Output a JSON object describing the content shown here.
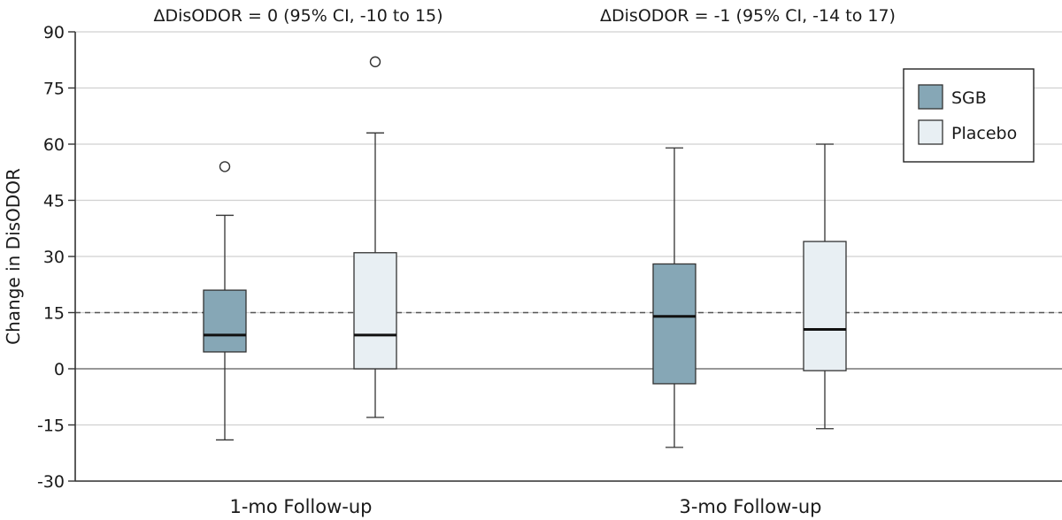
{
  "chart_data": {
    "type": "box",
    "ylabel": "Change in DisODOR",
    "ylim": [
      -30,
      90
    ],
    "yticks": [
      -30,
      -15,
      0,
      15,
      30,
      45,
      60,
      75,
      90
    ],
    "yticks_labels": [
      "-30",
      "-15",
      "0",
      "15",
      "30",
      "45",
      "60",
      "75",
      "90"
    ],
    "grid": true,
    "reference_lines": [
      {
        "y": 0,
        "style": "solid"
      },
      {
        "y": 15,
        "style": "dashed"
      }
    ],
    "categories": [
      "1-mo Follow-up",
      "3-mo Follow-up"
    ],
    "annotations": [
      "ΔDisODOR = 0 (95% CI, -10 to 15)",
      "ΔDisODOR = -1 (95% CI, -14 to 17)"
    ],
    "legend": {
      "position": "top-right"
    },
    "series": [
      {
        "name": "SGB",
        "color": "#86a7b6",
        "boxes": [
          {
            "category": "1-mo Follow-up",
            "whisker_low": -19,
            "q1": 4.5,
            "median": 9,
            "q3": 21,
            "whisker_high": 41,
            "outliers": [
              54
            ]
          },
          {
            "category": "3-mo Follow-up",
            "whisker_low": -21,
            "q1": -4,
            "median": 14,
            "q3": 28,
            "whisker_high": 59,
            "outliers": []
          }
        ]
      },
      {
        "name": "Placebo",
        "color": "#e8eff3",
        "boxes": [
          {
            "category": "1-mo Follow-up",
            "whisker_low": -13,
            "q1": 0,
            "median": 9,
            "q3": 31,
            "whisker_high": 63,
            "outliers": [
              82
            ]
          },
          {
            "category": "3-mo Follow-up",
            "whisker_low": -16,
            "q1": -0.5,
            "median": 10.5,
            "q3": 34,
            "whisker_high": 60,
            "outliers": []
          }
        ]
      }
    ]
  }
}
